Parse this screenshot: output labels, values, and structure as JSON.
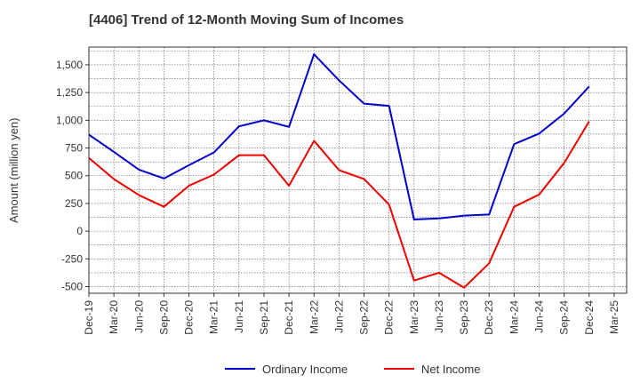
{
  "chart_data": {
    "type": "line",
    "title": "[4406]  Trend of 12-Month Moving Sum of Incomes",
    "xlabel": "",
    "ylabel": "Amount (million yen)",
    "ylim": [
      -560,
      1660
    ],
    "yticks": [
      1500,
      1250,
      1000,
      750,
      500,
      250,
      0,
      -250,
      -500
    ],
    "ytick_labels": [
      "1,500",
      "1,250",
      "1,000",
      "750",
      "500",
      "250",
      "0",
      "-250",
      "-500"
    ],
    "categories": [
      "Dec-19",
      "Mar-20",
      "Jun-20",
      "Sep-20",
      "Dec-20",
      "Mar-21",
      "Jun-21",
      "Sep-21",
      "Dec-21",
      "Mar-22",
      "Jun-22",
      "Sep-22",
      "Dec-22",
      "Mar-23",
      "Jun-23",
      "Sep-23",
      "Dec-23",
      "Mar-24",
      "Jun-24",
      "Sep-24",
      "Dec-24",
      "Mar-25"
    ],
    "grid": true,
    "legend_position": "bottom",
    "series": [
      {
        "name": "Ordinary Income",
        "color": "#0000cc",
        "values": [
          870,
          715,
          555,
          475,
          595,
          710,
          945,
          1000,
          940,
          1595,
          1360,
          1150,
          1130,
          105,
          115,
          140,
          150,
          785,
          880,
          1060,
          1305,
          null
        ]
      },
      {
        "name": "Net Income",
        "color": "#ee0000",
        "values": [
          660,
          470,
          325,
          220,
          410,
          510,
          685,
          685,
          410,
          815,
          550,
          470,
          240,
          -445,
          -375,
          -510,
          -290,
          220,
          330,
          615,
          990,
          null
        ]
      }
    ]
  }
}
